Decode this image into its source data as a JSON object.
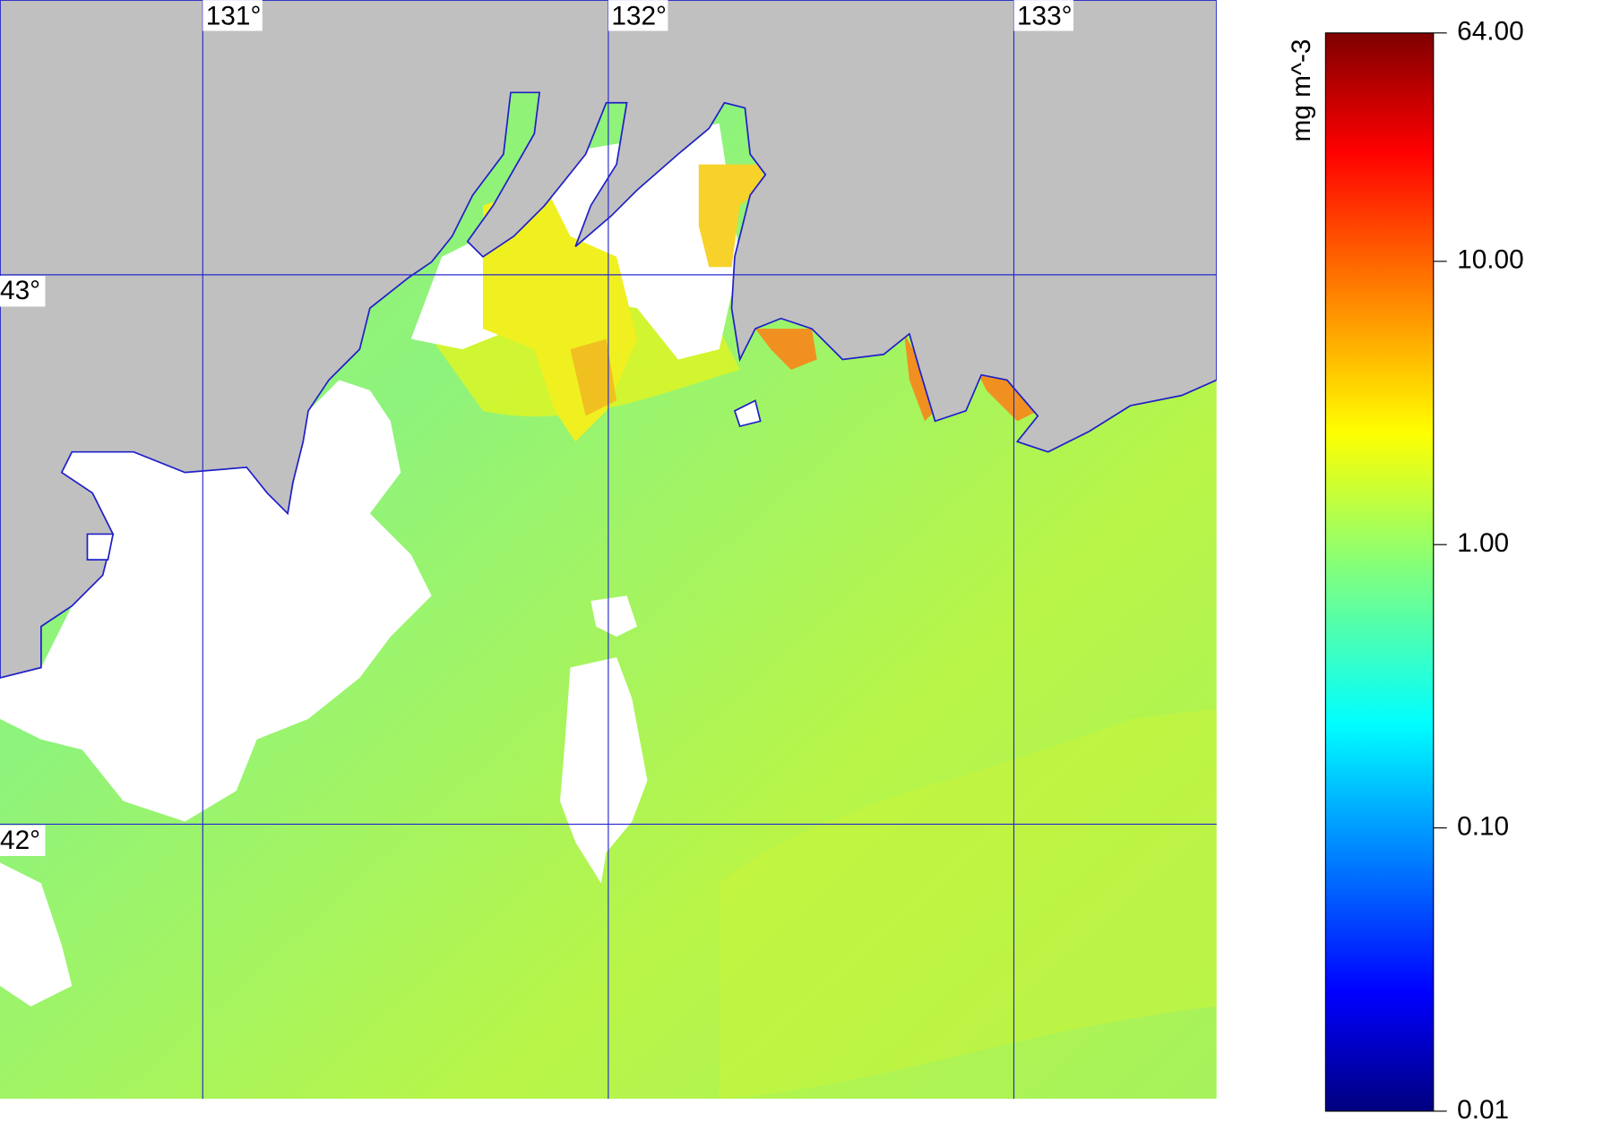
{
  "map": {
    "xlim": [
      130.5,
      133.5
    ],
    "ylim": [
      41.5,
      43.5
    ],
    "lon_ticks": [
      {
        "value": 131,
        "label": "131°"
      },
      {
        "value": 132,
        "label": "132°"
      },
      {
        "value": 133,
        "label": "133°"
      }
    ],
    "lat_ticks": [
      {
        "value": 43,
        "label": "43°"
      },
      {
        "value": 42,
        "label": "42°"
      }
    ],
    "colorbar": {
      "label": "mg m^-3",
      "log_scale": true,
      "lim": [
        0.01,
        64
      ],
      "ticks": [
        {
          "value": 64,
          "label": "64.00"
        },
        {
          "value": 10,
          "label": "10.00"
        },
        {
          "value": 1,
          "label": "1.00"
        },
        {
          "value": 0.1,
          "label": "0.10"
        },
        {
          "value": 0.01,
          "label": "0.01"
        }
      ]
    }
  }
}
